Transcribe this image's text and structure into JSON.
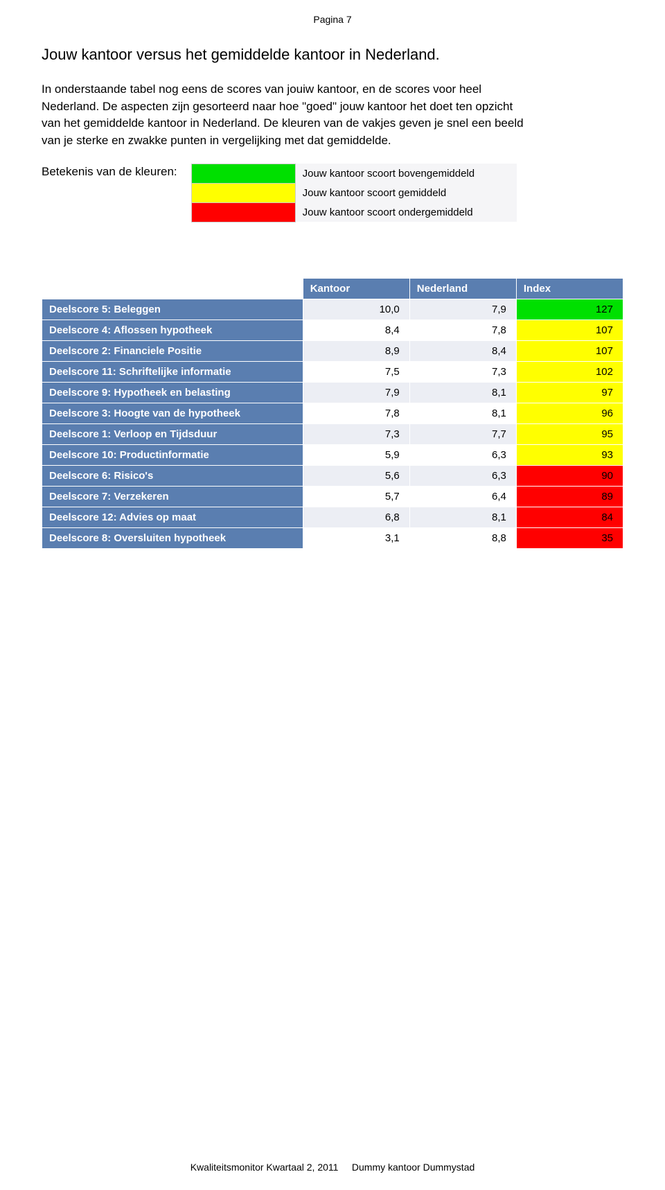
{
  "page_number": "Pagina 7",
  "title": "Jouw kantoor versus het gemiddelde kantoor in Nederland.",
  "paragraph": "In onderstaande tabel nog eens de scores van jouiw kantoor, en de scores voor heel Nederland. De aspecten zijn gesorteerd naar hoe \"goed\" jouw kantoor het doet ten opzicht van het gemiddelde kantoor in Nederland. De kleuren van de vakjes geven je snel een beeld van je sterke en zwakke punten in vergelijking met dat gemiddelde.",
  "legend_label": "Betekenis van de kleuren:",
  "legend": [
    {
      "color": "#00e000",
      "text": "Jouw kantoor scoort bovengemiddeld"
    },
    {
      "color": "#ffff00",
      "text": "Jouw kantoor scoort gemiddeld"
    },
    {
      "color": "#ff0000",
      "text": "Jouw kantoor scoort ondergemiddeld"
    }
  ],
  "colors": {
    "header_bg": "#5a7eb0",
    "header_fg": "#ffffff",
    "alt_bg": "#eceef4",
    "plain_bg": "#ffffff",
    "green": "#00e000",
    "yellow": "#ffff00",
    "red": "#ff0000"
  },
  "table": {
    "headers": {
      "col1": "Kantoor",
      "col2": "Nederland",
      "col3": "Index"
    },
    "rows": [
      {
        "name": "Deelscore 5: Beleggen",
        "kantoor": "10,0",
        "nederland": "7,9",
        "index": "127",
        "k_bg": "alt",
        "n_bg": "alt",
        "i_color": "green"
      },
      {
        "name": "Deelscore 4: Aflossen hypotheek",
        "kantoor": "8,4",
        "nederland": "7,8",
        "index": "107",
        "k_bg": "plain",
        "n_bg": "plain",
        "i_color": "yellow"
      },
      {
        "name": "Deelscore 2: Financiele Positie",
        "kantoor": "8,9",
        "nederland": "8,4",
        "index": "107",
        "k_bg": "alt",
        "n_bg": "alt",
        "i_color": "yellow"
      },
      {
        "name": "Deelscore 11: Schriftelijke informatie",
        "kantoor": "7,5",
        "nederland": "7,3",
        "index": "102",
        "k_bg": "plain",
        "n_bg": "plain",
        "i_color": "yellow"
      },
      {
        "name": "Deelscore 9: Hypotheek en belasting",
        "kantoor": "7,9",
        "nederland": "8,1",
        "index": "97",
        "k_bg": "alt",
        "n_bg": "alt",
        "i_color": "yellow"
      },
      {
        "name": "Deelscore 3: Hoogte van de hypotheek",
        "kantoor": "7,8",
        "nederland": "8,1",
        "index": "96",
        "k_bg": "plain",
        "n_bg": "plain",
        "i_color": "yellow"
      },
      {
        "name": "Deelscore 1: Verloop en Tijdsduur",
        "kantoor": "7,3",
        "nederland": "7,7",
        "index": "95",
        "k_bg": "alt",
        "n_bg": "alt",
        "i_color": "yellow"
      },
      {
        "name": "Deelscore 10: Productinformatie",
        "kantoor": "5,9",
        "nederland": "6,3",
        "index": "93",
        "k_bg": "plain",
        "n_bg": "plain",
        "i_color": "yellow"
      },
      {
        "name": "Deelscore 6: Risico's",
        "kantoor": "5,6",
        "nederland": "6,3",
        "index": "90",
        "k_bg": "alt",
        "n_bg": "alt",
        "i_color": "red"
      },
      {
        "name": "Deelscore 7: Verzekeren",
        "kantoor": "5,7",
        "nederland": "6,4",
        "index": "89",
        "k_bg": "plain",
        "n_bg": "plain",
        "i_color": "red"
      },
      {
        "name": "Deelscore 12: Advies op maat",
        "kantoor": "6,8",
        "nederland": "8,1",
        "index": "84",
        "k_bg": "alt",
        "n_bg": "alt",
        "i_color": "red"
      },
      {
        "name": "Deelscore 8: Oversluiten hypotheek",
        "kantoor": "3,1",
        "nederland": "8,8",
        "index": "35",
        "k_bg": "plain",
        "n_bg": "plain",
        "i_color": "red"
      }
    ]
  },
  "footer": {
    "left": "Kwaliteitsmonitor Kwartaal 2, 2011",
    "right": "Dummy kantoor Dummystad"
  }
}
